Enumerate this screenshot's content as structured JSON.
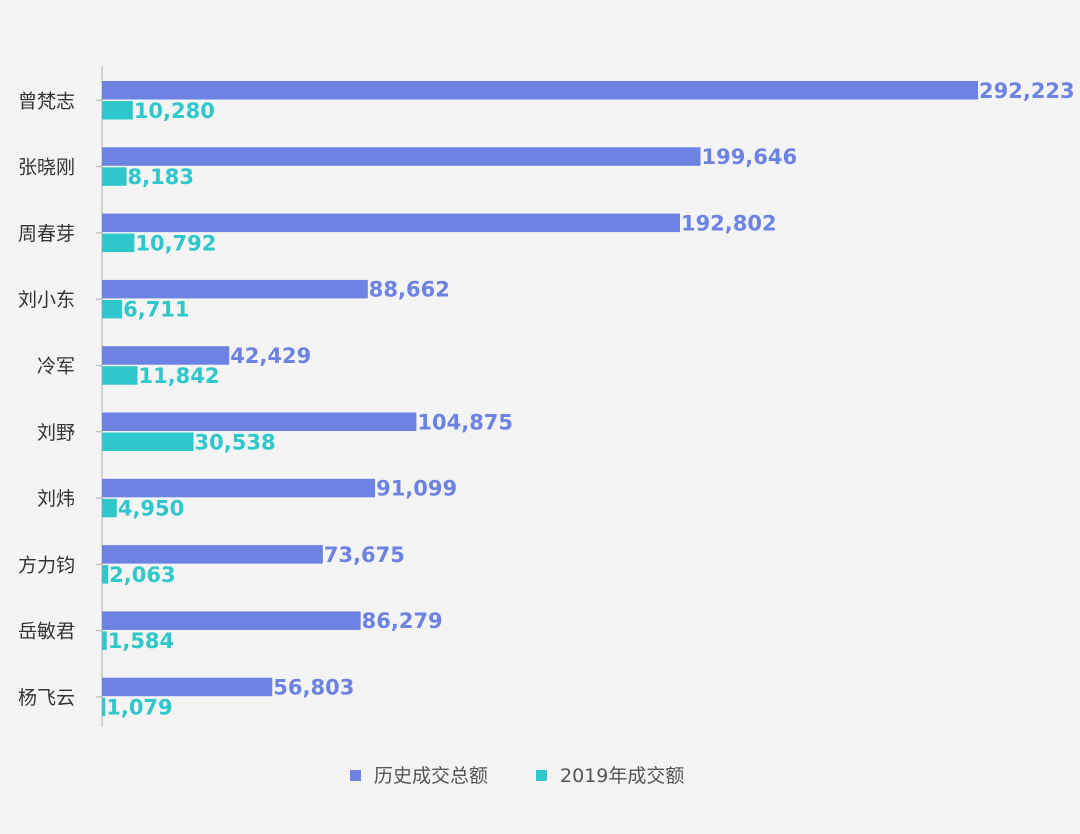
{
  "chart_data": {
    "type": "bar",
    "orientation": "horizontal",
    "categories": [
      "曾梵志",
      "张晓刚",
      "周春芽",
      "刘小东",
      "冷军",
      "刘野",
      "刘炜",
      "方力钧",
      "岳敏君",
      "杨飞云"
    ],
    "series": [
      {
        "name": "历史成交总额",
        "color": "#6d83e3",
        "values": [
          292223,
          199646,
          192802,
          88662,
          42429,
          104875,
          91099,
          73675,
          86279,
          56803
        ],
        "labels": [
          "292,223",
          "199,646",
          "192,802",
          "88,662",
          "42,429",
          "104,875",
          "91,099",
          "73,675",
          "86,279",
          "56,803"
        ]
      },
      {
        "name": "2019年成交额",
        "color": "#2ec7cc",
        "values": [
          10280,
          8183,
          10792,
          6711,
          11842,
          30538,
          4950,
          2063,
          1584,
          1079
        ],
        "labels": [
          "10,280",
          "8,183",
          "10,792",
          "6,711",
          "11,842",
          "30,538",
          "4,950",
          "2,063",
          "1,584",
          "1,079"
        ]
      }
    ],
    "xlim": [
      0,
      292223
    ],
    "grid": false,
    "legend_position": "bottom",
    "axis_color": "#bbbbbb"
  }
}
